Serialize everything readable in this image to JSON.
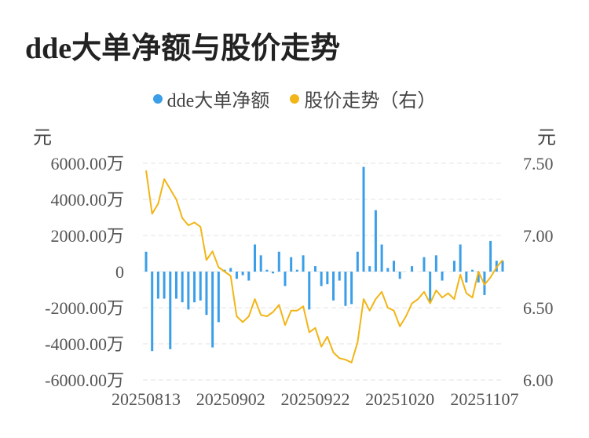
{
  "title": "dde大单净额与股价走势",
  "legend": {
    "bar_label": "dde大单净额",
    "line_label": "股价走势（右）"
  },
  "units": {
    "left": "元",
    "right": "元"
  },
  "colors": {
    "bar": "#3a9ee8",
    "line": "#f2b517",
    "grid": "#e3e3e3",
    "text": "#555555"
  },
  "chart_data": {
    "type": "bar+line",
    "title": "dde大单净额与股价走势",
    "x_tick_labels": [
      "20250813",
      "20250902",
      "20250922",
      "20251020",
      "20251107"
    ],
    "x_tick_indices": [
      0,
      14,
      28,
      42,
      56
    ],
    "y_left": {
      "ylim": [
        -6000,
        6000
      ],
      "unit": "万",
      "tick_labels": [
        "6000.00万",
        "4000.00万",
        "2000.00万",
        "0",
        "-2000.00万",
        "-4000.00万",
        "-6000.00万"
      ],
      "tick_values": [
        6000,
        4000,
        2000,
        0,
        -2000,
        -4000,
        -6000
      ]
    },
    "y_right": {
      "ylim": [
        6.0,
        7.5
      ],
      "tick_labels": [
        "7.50",
        "7.00",
        "6.50",
        "6.00"
      ],
      "tick_values": [
        7.5,
        7.0,
        6.5,
        6.0
      ]
    },
    "series": [
      {
        "name": "dde大单净额",
        "type": "bar",
        "axis": "left",
        "values": [
          1100,
          -4400,
          -1500,
          -1500,
          -4300,
          -1500,
          -1700,
          -2100,
          -1700,
          -1600,
          -2400,
          -4200,
          -2800,
          100,
          200,
          -400,
          -200,
          -500,
          1500,
          900,
          100,
          -100,
          1100,
          -800,
          800,
          100,
          900,
          -2100,
          300,
          -800,
          -700,
          -1600,
          -500,
          -1900,
          -1800,
          1100,
          5800,
          300,
          3400,
          1500,
          200,
          600,
          -400,
          0,
          300,
          0,
          800,
          -1700,
          900,
          -500,
          0,
          600,
          1500,
          -600,
          100,
          -600,
          -1300,
          1700,
          600,
          600
        ]
      },
      {
        "name": "股价走势（右）",
        "type": "line",
        "axis": "right",
        "values": [
          7.45,
          7.15,
          7.22,
          7.39,
          7.32,
          7.25,
          7.12,
          7.07,
          7.09,
          7.06,
          6.83,
          6.89,
          6.78,
          6.75,
          6.72,
          6.44,
          6.4,
          6.44,
          6.56,
          6.45,
          6.44,
          6.47,
          6.52,
          6.38,
          6.48,
          6.48,
          6.51,
          6.33,
          6.36,
          6.23,
          6.3,
          6.19,
          6.15,
          6.14,
          6.12,
          6.26,
          6.56,
          6.48,
          6.56,
          6.61,
          6.5,
          6.48,
          6.37,
          6.44,
          6.53,
          6.56,
          6.61,
          6.53,
          6.62,
          6.57,
          6.6,
          6.56,
          6.73,
          6.6,
          6.57,
          6.75,
          6.66,
          6.71,
          6.78,
          6.83
        ]
      }
    ]
  }
}
